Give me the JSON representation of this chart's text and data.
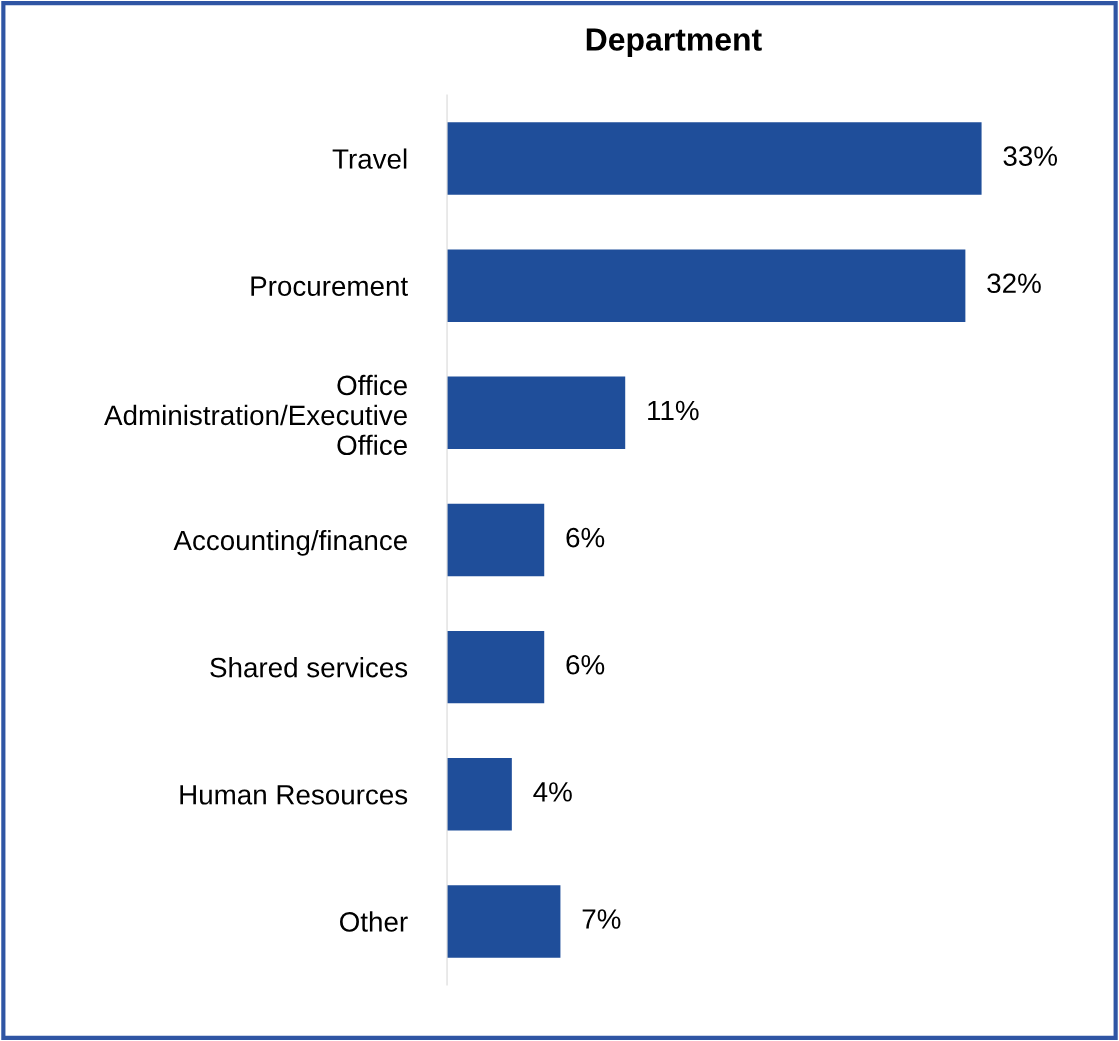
{
  "chart_data": {
    "type": "bar",
    "orientation": "horizontal",
    "title": "Department",
    "categories": [
      "Travel",
      "Procurement",
      "Office\nAdministration/Executive\nOffice",
      "Accounting/finance",
      "Shared services",
      "Human Resources",
      "Other"
    ],
    "values": [
      33,
      32,
      11,
      6,
      6,
      4,
      7
    ],
    "value_labels": [
      "33%",
      "32%",
      "11%",
      "6%",
      "6%",
      "4%",
      "7%"
    ],
    "color": "#1f4e9a",
    "grid": false,
    "legend": false
  }
}
